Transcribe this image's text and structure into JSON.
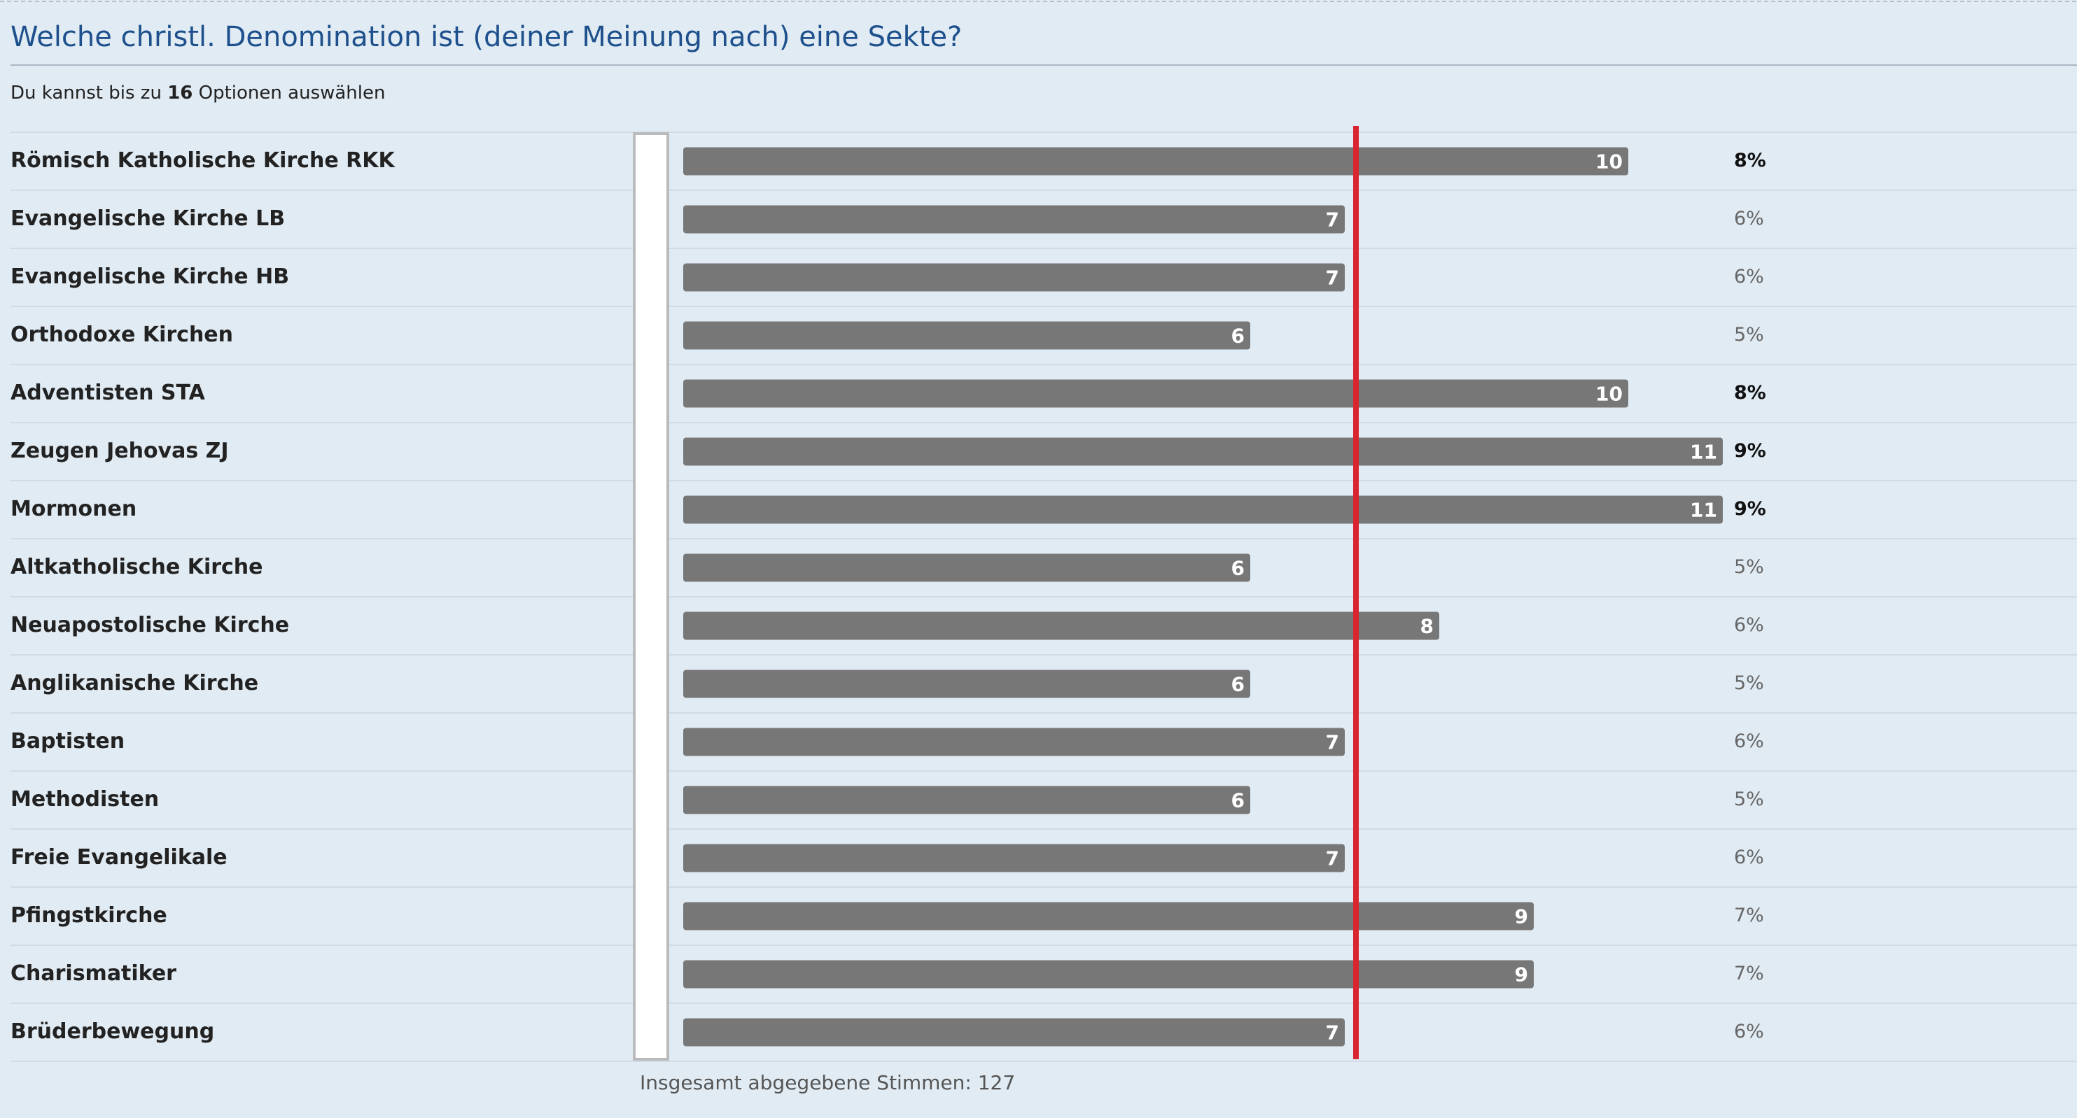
{
  "header": {
    "title": "Welche christl. Denomination ist (deiner Meinung nach) eine Sekte?",
    "subtitle_before": "Du kannst bis zu ",
    "subtitle_max": "16",
    "subtitle_after": " Optionen auswählen"
  },
  "poll": {
    "options": [
      {
        "label": "Römisch Katholische Kirche RKK",
        "votes": 10,
        "percent": "8%",
        "bold": true
      },
      {
        "label": "Evangelische Kirche LB",
        "votes": 7,
        "percent": "6%",
        "bold": false
      },
      {
        "label": "Evangelische Kirche HB",
        "votes": 7,
        "percent": "6%",
        "bold": false
      },
      {
        "label": "Orthodoxe Kirchen",
        "votes": 6,
        "percent": "5%",
        "bold": false
      },
      {
        "label": "Adventisten STA",
        "votes": 10,
        "percent": "8%",
        "bold": true
      },
      {
        "label": "Zeugen Jehovas ZJ",
        "votes": 11,
        "percent": "9%",
        "bold": true
      },
      {
        "label": "Mormonen",
        "votes": 11,
        "percent": "9%",
        "bold": true
      },
      {
        "label": "Altkatholische Kirche",
        "votes": 6,
        "percent": "5%",
        "bold": false
      },
      {
        "label": "Neuapostolische Kirche",
        "votes": 8,
        "percent": "6%",
        "bold": false
      },
      {
        "label": "Anglikanische Kirche",
        "votes": 6,
        "percent": "5%",
        "bold": false
      },
      {
        "label": "Baptisten",
        "votes": 7,
        "percent": "6%",
        "bold": false
      },
      {
        "label": "Methodisten",
        "votes": 6,
        "percent": "5%",
        "bold": false
      },
      {
        "label": "Freie Evangelikale",
        "votes": 7,
        "percent": "6%",
        "bold": false
      },
      {
        "label": "Pfingstkirche",
        "votes": 9,
        "percent": "7%",
        "bold": false
      },
      {
        "label": "Charismatiker",
        "votes": 9,
        "percent": "7%",
        "bold": false
      },
      {
        "label": "Brüderbewegung",
        "votes": 7,
        "percent": "6%",
        "bold": false
      }
    ],
    "total_label": "Insgesamt abgegebene Stimmen:",
    "total_votes": 127
  }
}
